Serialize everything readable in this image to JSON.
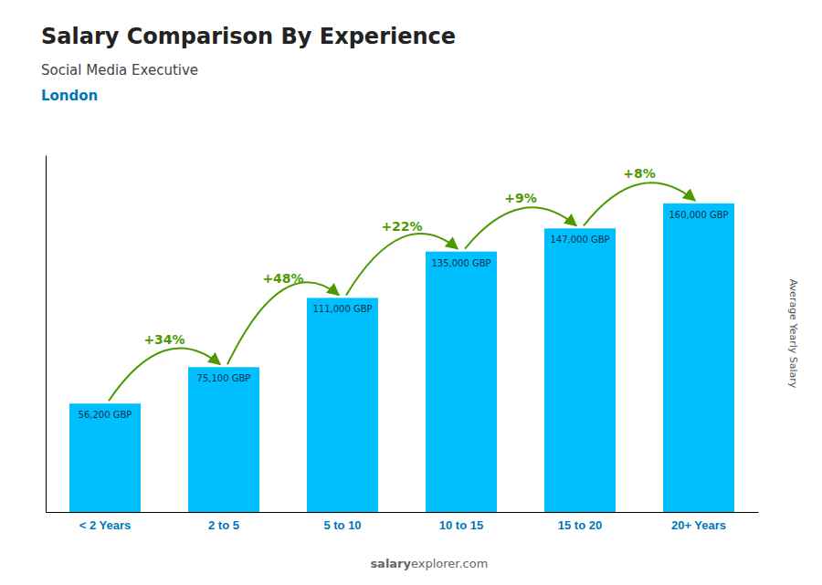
{
  "chart_data": {
    "type": "bar",
    "title": "Salary Comparison By Experience",
    "subtitle": "Social Media Executive",
    "city": "London",
    "ylabel": "Average Yearly Salary",
    "categories": [
      "< 2 Years",
      "2 to 5",
      "5 to 10",
      "10 to 15",
      "15 to 20",
      "20+ Years"
    ],
    "values": [
      56200,
      75100,
      111000,
      135000,
      147000,
      160000
    ],
    "value_labels": [
      "56,200 GBP",
      "75,100 GBP",
      "111,000 GBP",
      "135,000 GBP",
      "147,000 GBP",
      "160,000 GBP"
    ],
    "data_labels": true,
    "annotations": [
      "+34%",
      "+48%",
      "+22%",
      "+9%",
      "+8%"
    ],
    "watermark": [
      "salary",
      "explorer.com"
    ],
    "color": "#00BFFF",
    "ylim": [
      0,
      185000
    ],
    "yticks": [],
    "tick_labels": "x",
    "grid": false
  }
}
